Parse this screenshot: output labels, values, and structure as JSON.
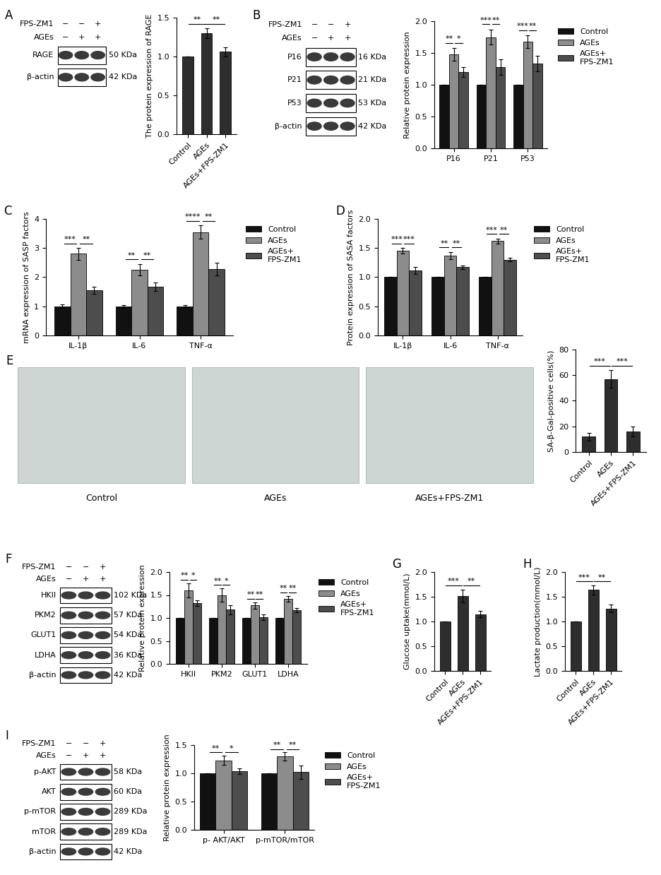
{
  "chart_data": [
    {
      "type": "blot",
      "panel": "A",
      "lanes": [
        {
          "name": "FPS-ZM1",
          "signs": [
            "−",
            "−",
            "+"
          ]
        },
        {
          "name": "AGEs",
          "signs": [
            "−",
            "+",
            "+"
          ]
        }
      ],
      "bands": [
        {
          "name": "RAGE",
          "size": "50 KDa"
        },
        {
          "name": "β-actin",
          "size": "42 KDa"
        }
      ]
    },
    {
      "type": "bar",
      "ylabel": "The protein expression of RAGE",
      "categories": [
        "Control",
        "AGEs",
        "AGEs+FPS-ZM1"
      ],
      "values": [
        1.0,
        1.3,
        1.06
      ],
      "errors": [
        0,
        0.06,
        0.06
      ],
      "color": "#2e2e2e",
      "ylim": [
        0,
        1.5
      ],
      "yticks": [
        {
          "value": 0,
          "label": "0.0"
        },
        {
          "value": 0.5,
          "label": "0.5"
        },
        {
          "value": 1,
          "label": "1.0"
        },
        {
          "value": 1.5,
          "label": "1.5"
        }
      ],
      "significance": [
        {
          "pair": [
            "Control",
            "AGEs"
          ],
          "label": "**"
        },
        {
          "pair": [
            "AGEs",
            "AGEs+FPS-ZM1"
          ],
          "label": "**"
        }
      ]
    },
    {
      "type": "blot",
      "panel": "B",
      "lanes": [
        {
          "name": "FPS-ZM1",
          "signs": [
            "−",
            "−",
            "+"
          ]
        },
        {
          "name": "AGEs",
          "signs": [
            "−",
            "+",
            "+"
          ]
        }
      ],
      "bands": [
        {
          "name": "P16",
          "size": "16 KDa"
        },
        {
          "name": "P21",
          "size": "21 KDa"
        },
        {
          "name": "P53",
          "size": "53 KDa"
        },
        {
          "name": "β-actin",
          "size": "42 KDa"
        }
      ]
    },
    {
      "type": "bar",
      "ylabel": "Relative protein expression",
      "legend": "upper left",
      "categories": [
        "P16",
        "P21",
        "P53"
      ],
      "series": [
        {
          "name": "Control",
          "color": "#111111",
          "values": [
            1.0,
            1.0,
            1.0
          ],
          "errors": [
            0,
            0,
            0
          ]
        },
        {
          "name": "AGEs",
          "color": "#8c8c8c",
          "values": [
            1.48,
            1.75,
            1.68
          ],
          "errors": [
            0.1,
            0.12,
            0.1
          ]
        },
        {
          "name": "AGEs+\nFPS-ZM1",
          "color": "#4d4d4d",
          "values": [
            1.2,
            1.28,
            1.33
          ],
          "errors": [
            0.08,
            0.12,
            0.12
          ]
        }
      ],
      "ylim": [
        0,
        2.0
      ],
      "yticks": [
        {
          "value": 0,
          "label": "0.0"
        },
        {
          "value": 0.5,
          "label": "0.5"
        },
        {
          "value": 1,
          "label": "1.0"
        },
        {
          "value": 1.5,
          "label": "1.5"
        },
        {
          "value": 2,
          "label": "2.0"
        }
      ],
      "significance": [
        {
          "category": "P16",
          "pair": [
            "Control",
            "AGEs"
          ],
          "label": "**"
        },
        {
          "category": "P16",
          "pair": [
            "AGEs",
            "AGEs+\nFPS-ZM1"
          ],
          "label": "*"
        },
        {
          "category": "P21",
          "pair": [
            "Control",
            "AGEs"
          ],
          "label": "***"
        },
        {
          "category": "P21",
          "pair": [
            "AGEs",
            "AGEs+\nFPS-ZM1"
          ],
          "label": "**"
        },
        {
          "category": "P53",
          "pair": [
            "Control",
            "AGEs"
          ],
          "label": "***"
        },
        {
          "category": "P53",
          "pair": [
            "AGEs",
            "AGEs+\nFPS-ZM1"
          ],
          "label": "**"
        }
      ]
    },
    {
      "type": "bar",
      "panel": "C",
      "ylabel": "mRNA expression of SASP factors",
      "legend": "upper left",
      "categories": [
        "IL-1β",
        "IL-6",
        "TNF-α"
      ],
      "series": [
        {
          "name": "Control",
          "color": "#111111",
          "values": [
            1.0,
            1.0,
            1.0
          ],
          "errors": [
            0.06,
            0.05,
            0.04
          ]
        },
        {
          "name": "AGEs",
          "color": "#8c8c8c",
          "values": [
            2.8,
            2.25,
            3.55
          ],
          "errors": [
            0.2,
            0.2,
            0.22
          ]
        },
        {
          "name": "AGEs+\nFPS-ZM1",
          "color": "#4d4d4d",
          "values": [
            1.55,
            1.68,
            2.28
          ],
          "errors": [
            0.13,
            0.15,
            0.22
          ]
        }
      ],
      "ylim": [
        0,
        4
      ],
      "yticks": [
        0,
        1,
        2,
        3,
        4
      ],
      "significance": [
        {
          "category": "IL-1β",
          "pair": [
            "Control",
            "AGEs"
          ],
          "label": "***"
        },
        {
          "category": "IL-1β",
          "pair": [
            "AGEs",
            "AGEs+\nFPS-ZM1"
          ],
          "label": "**"
        },
        {
          "category": "IL-6",
          "pair": [
            "Control",
            "AGEs"
          ],
          "label": "**"
        },
        {
          "category": "IL-6",
          "pair": [
            "AGEs",
            "AGEs+\nFPS-ZM1"
          ],
          "label": "**"
        },
        {
          "category": "TNF-α",
          "pair": [
            "Control",
            "AGEs"
          ],
          "label": "****"
        },
        {
          "category": "TNF-α",
          "pair": [
            "AGEs",
            "AGEs+\nFPS-ZM1"
          ],
          "label": "**"
        }
      ]
    },
    {
      "type": "bar",
      "panel": "D",
      "ylabel": "Protein expression of SASA factors",
      "legend": "upper left",
      "categories": [
        "IL-1β",
        "IL-6",
        "TNF-α"
      ],
      "series": [
        {
          "name": "Control",
          "color": "#111111",
          "values": [
            1.0,
            1.0,
            1.0
          ],
          "errors": [
            0,
            0,
            0
          ]
        },
        {
          "name": "AGEs",
          "color": "#8c8c8c",
          "values": [
            1.45,
            1.37,
            1.62
          ],
          "errors": [
            0.05,
            0.06,
            0.04
          ]
        },
        {
          "name": "AGEs+\nFPS-ZM1",
          "color": "#4d4d4d",
          "values": [
            1.12,
            1.17,
            1.3
          ],
          "errors": [
            0.06,
            0.03,
            0.03
          ]
        }
      ],
      "ylim": [
        0,
        2.0
      ],
      "yticks": [
        {
          "value": 0,
          "label": "0.0"
        },
        {
          "value": 0.5,
          "label": "0.5"
        },
        {
          "value": 1,
          "label": "1.0"
        },
        {
          "value": 1.5,
          "label": "1.5"
        },
        {
          "value": 2,
          "label": "2.0"
        }
      ],
      "significance": [
        {
          "category": "IL-1β",
          "pair": [
            "Control",
            "AGEs"
          ],
          "label": "***"
        },
        {
          "category": "IL-1β",
          "pair": [
            "AGEs",
            "AGEs+\nFPS-ZM1"
          ],
          "label": "***"
        },
        {
          "category": "IL-6",
          "pair": [
            "Control",
            "AGEs"
          ],
          "label": "**"
        },
        {
          "category": "IL-6",
          "pair": [
            "AGEs",
            "AGEs+\nFPS-ZM1"
          ],
          "label": "**"
        },
        {
          "category": "TNF-α",
          "pair": [
            "Control",
            "AGEs"
          ],
          "label": "***"
        },
        {
          "category": "TNF-α",
          "pair": [
            "AGEs",
            "AGEs+\nFPS-ZM1"
          ],
          "label": "**"
        }
      ]
    },
    {
      "type": "image",
      "panel": "E",
      "labels": [
        "Control",
        "AGEs",
        "AGEs+FPS-ZM1"
      ]
    },
    {
      "type": "bar",
      "ylabel": "SA-β-Gal-positive cells(%)",
      "categories": [
        "Control",
        "AGEs",
        "AGEs+FPS-ZM1"
      ],
      "values": [
        12,
        57,
        16
      ],
      "errors": [
        3,
        7,
        4
      ],
      "color": "#2e2e2e",
      "ylim": [
        0,
        80
      ],
      "yticks": [
        0,
        20,
        40,
        60,
        80
      ],
      "significance": [
        {
          "pair": [
            "Control",
            "AGEs"
          ],
          "label": "***"
        },
        {
          "pair": [
            "AGEs",
            "AGEs+FPS-ZM1"
          ],
          "label": "***"
        }
      ]
    },
    {
      "type": "blot",
      "panel": "F",
      "lanes": [
        {
          "name": "FPS-ZM1",
          "signs": [
            "−",
            "−",
            "+"
          ]
        },
        {
          "name": "AGEs",
          "signs": [
            "−",
            "+",
            "+"
          ]
        }
      ],
      "bands": [
        {
          "name": "HKII",
          "size": "102 KDa"
        },
        {
          "name": "PKM2",
          "size": "57 KDa"
        },
        {
          "name": "GLUT1",
          "size": "54 KDa"
        },
        {
          "name": "LDHA",
          "size": "36 KDa"
        },
        {
          "name": "β-actin",
          "size": "42 KDa"
        }
      ]
    },
    {
      "type": "bar",
      "ylabel": "Relative protein expression",
      "legend": "upper left",
      "categories": [
        "HKII",
        "PKM2",
        "GLUT1",
        "LDHA"
      ],
      "series": [
        {
          "name": "Control",
          "color": "#111111",
          "values": [
            1.0,
            1.0,
            1.0,
            1.0
          ],
          "errors": [
            0,
            0,
            0,
            0
          ]
        },
        {
          "name": "AGEs",
          "color": "#8c8c8c",
          "values": [
            1.6,
            1.5,
            1.27,
            1.42
          ],
          "errors": [
            0.15,
            0.14,
            0.07,
            0.06
          ]
        },
        {
          "name": "AGEs+\nFPS-ZM1",
          "color": "#4d4d4d",
          "values": [
            1.32,
            1.18,
            1.02,
            1.17
          ],
          "errors": [
            0.06,
            0.1,
            0.06,
            0.05
          ]
        }
      ],
      "ylim": [
        0,
        2.0
      ],
      "yticks": [
        {
          "value": 0,
          "label": "0.0"
        },
        {
          "value": 0.5,
          "label": "0.5"
        },
        {
          "value": 1,
          "label": "1.0"
        },
        {
          "value": 1.5,
          "label": "1.5"
        },
        {
          "value": 2,
          "label": "2.0"
        }
      ],
      "significance": [
        {
          "category": "HKII",
          "pair": [
            "Control",
            "AGEs"
          ],
          "label": "**"
        },
        {
          "category": "HKII",
          "pair": [
            "AGEs",
            "AGEs+\nFPS-ZM1"
          ],
          "label": "*"
        },
        {
          "category": "PKM2",
          "pair": [
            "Control",
            "AGEs"
          ],
          "label": "**"
        },
        {
          "category": "PKM2",
          "pair": [
            "AGEs",
            "AGEs+\nFPS-ZM1"
          ],
          "label": "*"
        },
        {
          "category": "GLUT1",
          "pair": [
            "Control",
            "AGEs"
          ],
          "label": "**"
        },
        {
          "category": "GLUT1",
          "pair": [
            "AGEs",
            "AGEs+\nFPS-ZM1"
          ],
          "label": "**"
        },
        {
          "category": "LDHA",
          "pair": [
            "Control",
            "AGEs"
          ],
          "label": "**"
        },
        {
          "category": "LDHA",
          "pair": [
            "AGEs",
            "AGEs+\nFPS-ZM1"
          ],
          "label": "**"
        }
      ]
    },
    {
      "type": "bar",
      "panel": "G",
      "ylabel": "Glucose uptake(mmol/L)",
      "categories": [
        "Control",
        "AGEs",
        "AGEs+FPS-ZM1"
      ],
      "values": [
        1.0,
        1.52,
        1.15
      ],
      "errors": [
        0,
        0.13,
        0.07
      ],
      "color": "#2e2e2e",
      "ylim": [
        0,
        2.0
      ],
      "yticks": [
        {
          "value": 0,
          "label": "0.0"
        },
        {
          "value": 0.5,
          "label": "0.5"
        },
        {
          "value": 1,
          "label": "1.0"
        },
        {
          "value": 1.5,
          "label": "1.5"
        },
        {
          "value": 2,
          "label": "2.0"
        }
      ],
      "significance": [
        {
          "pair": [
            "Control",
            "AGEs"
          ],
          "label": "***"
        },
        {
          "pair": [
            "AGEs",
            "AGEs+FPS-ZM1"
          ],
          "label": "**"
        }
      ]
    },
    {
      "type": "bar",
      "panel": "H",
      "ylabel": "Lactate production(mmol/L)",
      "categories": [
        "Control",
        "AGEs",
        "AGEs+FPS-ZM1"
      ],
      "values": [
        1.0,
        1.64,
        1.26
      ],
      "errors": [
        0,
        0.09,
        0.08
      ],
      "color": "#2e2e2e",
      "ylim": [
        0,
        2.0
      ],
      "yticks": [
        {
          "value": 0,
          "label": "0.0"
        },
        {
          "value": 0.5,
          "label": "0.5"
        },
        {
          "value": 1,
          "label": "1.0"
        },
        {
          "value": 1.5,
          "label": "1.5"
        },
        {
          "value": 2,
          "label": "2.0"
        }
      ],
      "significance": [
        {
          "pair": [
            "Control",
            "AGEs"
          ],
          "label": "***"
        },
        {
          "pair": [
            "AGEs",
            "AGEs+FPS-ZM1"
          ],
          "label": "**"
        }
      ]
    },
    {
      "type": "blot",
      "panel": "I",
      "lanes": [
        {
          "name": "FPS-ZM1",
          "signs": [
            "−",
            "−",
            "+"
          ]
        },
        {
          "name": "AGEs",
          "signs": [
            "−",
            "+",
            "+"
          ]
        }
      ],
      "bands": [
        {
          "name": "p-AKT",
          "size": "58 KDa"
        },
        {
          "name": "AKT",
          "size": "60 KDa"
        },
        {
          "name": "p-mTOR",
          "size": "289 KDa"
        },
        {
          "name": "mTOR",
          "size": "289 KDa"
        },
        {
          "name": "β-actin",
          "size": "42 KDa"
        }
      ]
    },
    {
      "type": "bar",
      "ylabel": "Relative protein expression",
      "legend": "upper left",
      "categories": [
        "p- AKT/AKT",
        "p-mTOR/mTOR"
      ],
      "series": [
        {
          "name": "Control",
          "color": "#111111",
          "values": [
            1.0,
            1.0
          ],
          "errors": [
            0,
            0
          ]
        },
        {
          "name": "AGEs",
          "color": "#8c8c8c",
          "values": [
            1.23,
            1.3
          ],
          "errors": [
            0.08,
            0.07
          ]
        },
        {
          "name": "AGEs+\nFPS-ZM1",
          "color": "#4d4d4d",
          "values": [
            1.04,
            1.02
          ],
          "errors": [
            0.05,
            0.12
          ]
        }
      ],
      "ylim": [
        0,
        1.5
      ],
      "yticks": [
        {
          "value": 0,
          "label": "0.0"
        },
        {
          "value": 0.5,
          "label": "0.5"
        },
        {
          "value": 1,
          "label": "1.0"
        },
        {
          "value": 1.5,
          "label": "1.5"
        }
      ],
      "significance": [
        {
          "category": "p- AKT/AKT",
          "pair": [
            "Control",
            "AGEs"
          ],
          "label": "**"
        },
        {
          "category": "p- AKT/AKT",
          "pair": [
            "AGEs",
            "AGEs+\nFPS-ZM1"
          ],
          "label": "*"
        },
        {
          "category": "p-mTOR/mTOR",
          "pair": [
            "Control",
            "AGEs"
          ],
          "label": "**"
        },
        {
          "category": "p-mTOR/mTOR",
          "pair": [
            "AGEs",
            "AGEs+\nFPS-ZM1"
          ],
          "label": "**"
        }
      ]
    }
  ]
}
